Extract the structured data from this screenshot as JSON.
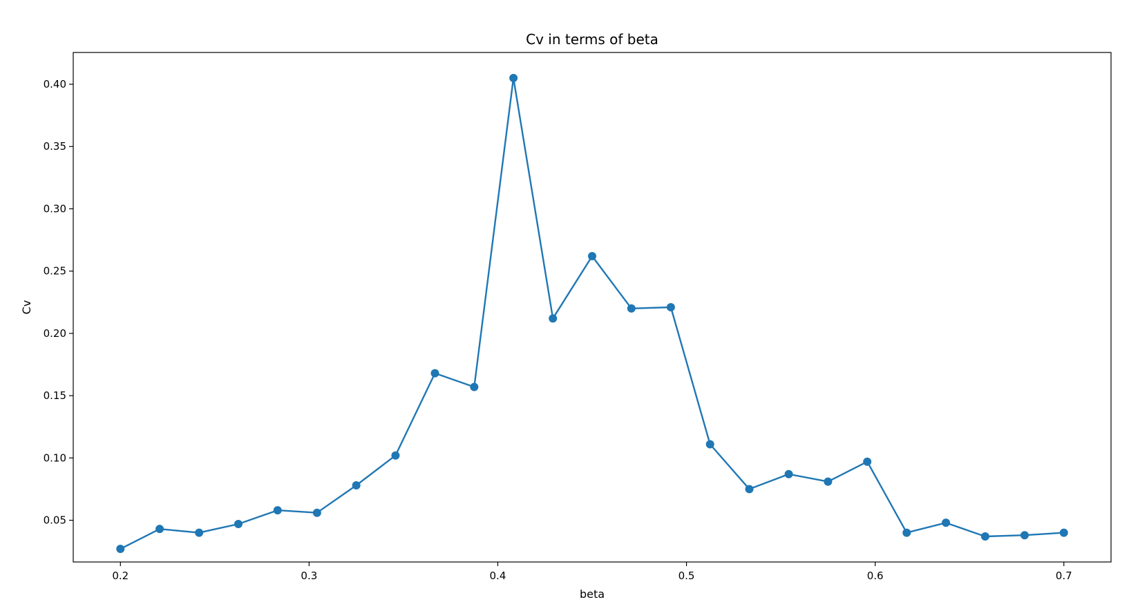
{
  "chart_data": {
    "type": "line",
    "title": "Cv in terms of beta",
    "xlabel": "beta",
    "ylabel": "Cv",
    "xlim": [
      0.175,
      0.725
    ],
    "ylim": [
      0.0165,
      0.4255
    ],
    "x_ticks": [
      "0.2",
      "0.3",
      "0.4",
      "0.5",
      "0.6",
      "0.7"
    ],
    "y_ticks": [
      "0.05",
      "0.10",
      "0.15",
      "0.20",
      "0.25",
      "0.30",
      "0.35",
      "0.40"
    ],
    "grid": false,
    "legend": "none",
    "series": [
      {
        "color": "#1f77b4",
        "marker": "circle",
        "x": [
          0.2,
          0.2208,
          0.2417,
          0.2625,
          0.2833,
          0.3042,
          0.325,
          0.3458,
          0.3667,
          0.3875,
          0.4083,
          0.4292,
          0.45,
          0.4708,
          0.4917,
          0.5125,
          0.5333,
          0.5542,
          0.575,
          0.5958,
          0.6167,
          0.6375,
          0.6583,
          0.6792,
          0.7
        ],
        "y": [
          0.027,
          0.043,
          0.04,
          0.047,
          0.058,
          0.056,
          0.078,
          0.102,
          0.168,
          0.157,
          0.405,
          0.212,
          0.262,
          0.22,
          0.221,
          0.111,
          0.075,
          0.087,
          0.081,
          0.097,
          0.04,
          0.048,
          0.037,
          0.038,
          0.04
        ]
      }
    ]
  }
}
